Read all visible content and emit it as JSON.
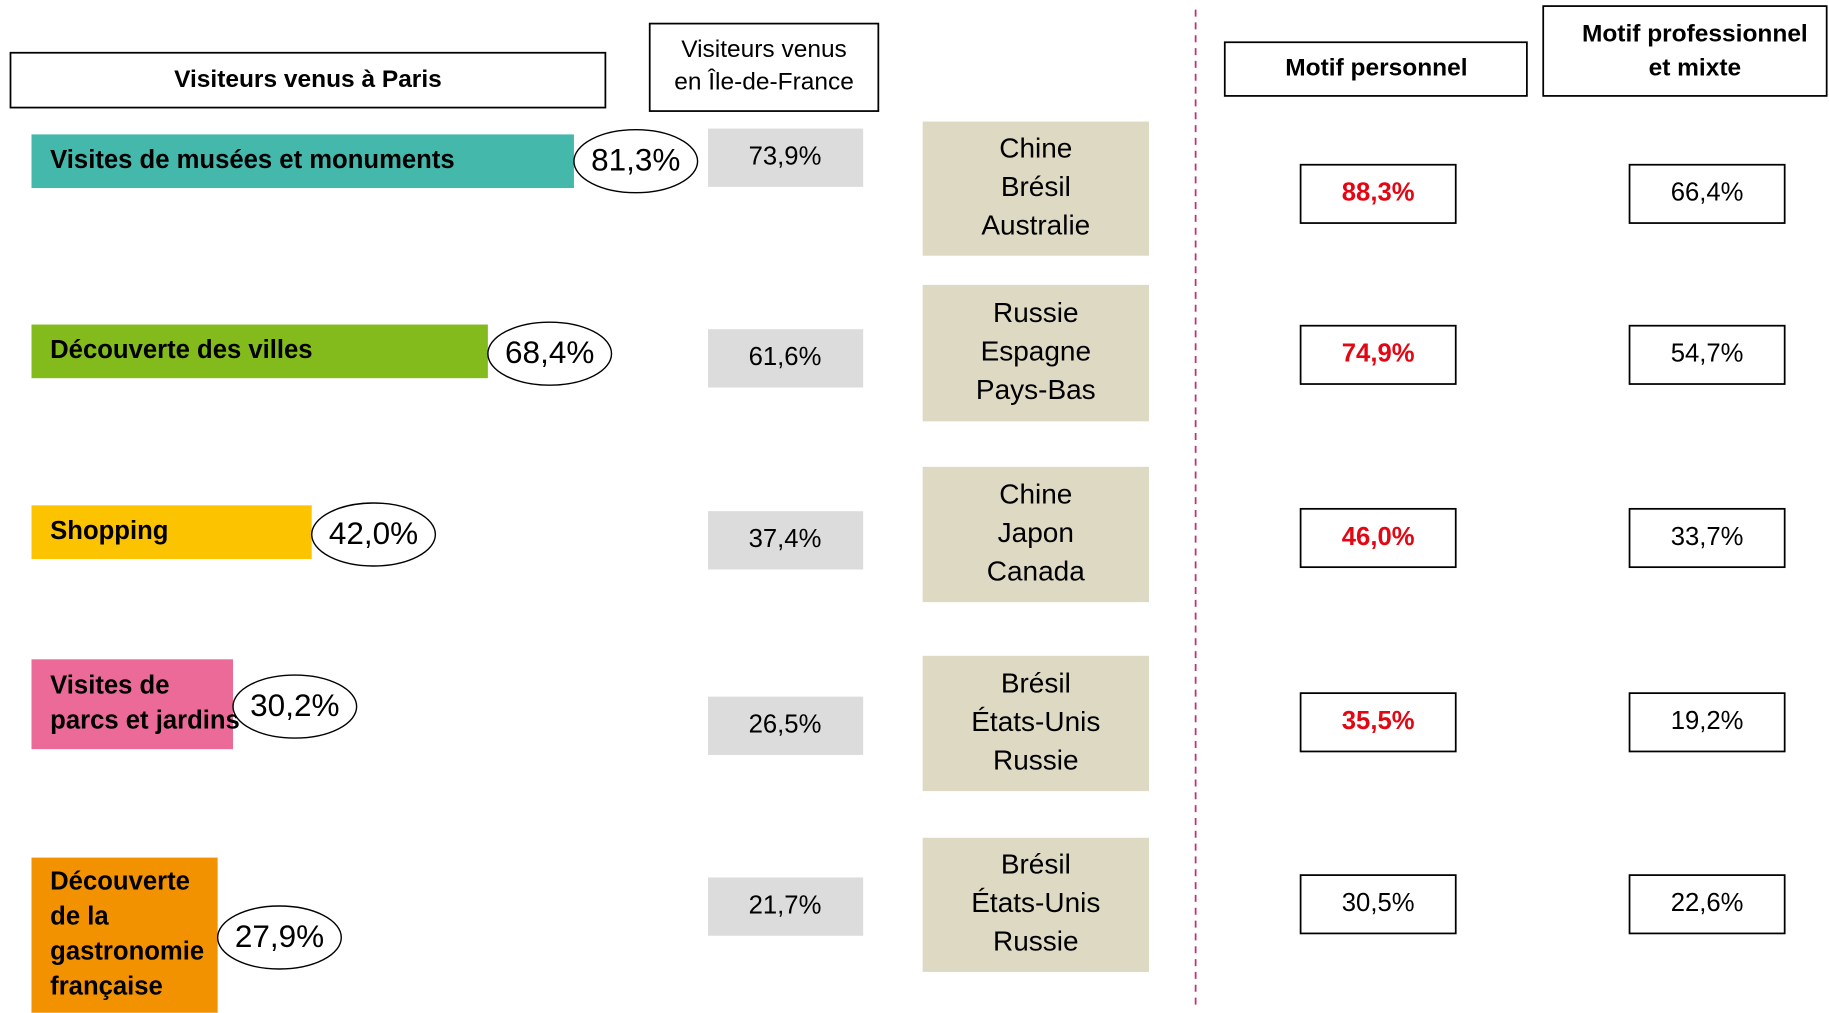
{
  "chart_data": {
    "type": "bar",
    "orientation": "horizontal",
    "headers": {
      "paris": "Visiteurs venus à Paris",
      "idf": [
        "Visiteurs venus",
        "en Île-de-France"
      ],
      "personnel": "Motif personnel",
      "pro": [
        "Motif professionnel",
        "et mixte"
      ]
    },
    "categories": [
      [
        "Visites de musées et monuments"
      ],
      [
        "Découverte des villes"
      ],
      [
        "Shopping"
      ],
      [
        "Visites de",
        "parcs et jardins"
      ],
      [
        "Découverte",
        "de la",
        "gastronomie",
        "française"
      ]
    ],
    "colors": [
      "#45b8ac",
      "#84bb1c",
      "#fcc400",
      "#eb6a98",
      "#f39200"
    ],
    "series": [
      {
        "name": "Visiteurs venus à Paris",
        "values": [
          81.3,
          68.4,
          42.0,
          30.2,
          27.9
        ],
        "value_labels": [
          "81,3%",
          "68,4%",
          "42,0%",
          "30,2%",
          "27,9%"
        ]
      },
      {
        "name": "Visiteurs venus en Île-de-France",
        "values": [
          73.9,
          61.6,
          37.4,
          26.5,
          21.7
        ],
        "value_labels": [
          "73,9%",
          "61,6%",
          "37,4%",
          "26,5%",
          "21,7%"
        ]
      },
      {
        "name": "Motif personnel",
        "values": [
          88.3,
          74.9,
          46.0,
          35.5,
          30.5
        ],
        "value_labels": [
          "88,3%",
          "74,9%",
          "46,0%",
          "35,5%",
          "30,5%"
        ],
        "label_colors": [
          "#e30613",
          "#e30613",
          "#e30613",
          "#e30613",
          "#000000"
        ]
      },
      {
        "name": "Motif professionnel et mixte",
        "values": [
          66.4,
          54.7,
          33.7,
          19.2,
          22.6
        ],
        "value_labels": [
          "66,4%",
          "54,7%",
          "33,7%",
          "19,2%",
          "22,6%"
        ]
      }
    ],
    "countries": [
      [
        "Chine",
        "Brésil",
        "Australie"
      ],
      [
        "Russie",
        "Espagne",
        "Pays-Bas"
      ],
      [
        "Chine",
        "Japon",
        "Canada"
      ],
      [
        "Brésil",
        "États-Unis",
        "Russie"
      ],
      [
        "Brésil",
        "États-Unis",
        "Russie"
      ]
    ]
  }
}
